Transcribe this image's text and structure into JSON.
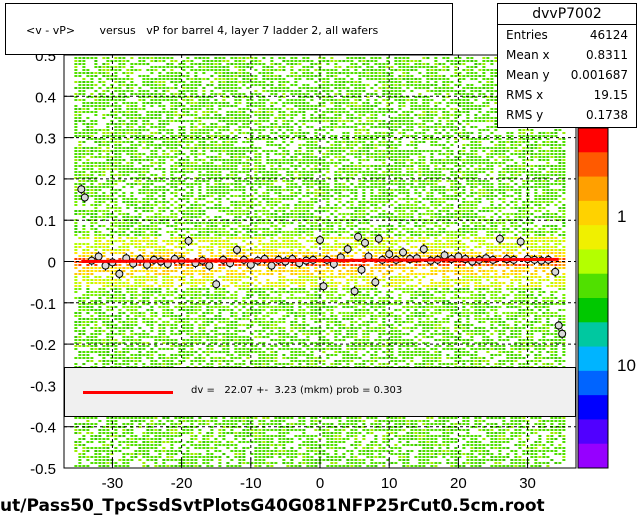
{
  "chart_data": {
    "type": "scatter",
    "title": "<v - vP>       versus   vP for barrel 4, layer 7 ladder 2, all wafers",
    "xlabel": "",
    "ylabel": "",
    "xlim": [
      -37,
      37
    ],
    "ylim": [
      -0.5,
      0.5
    ],
    "x_ticks": [
      -30,
      -20,
      -10,
      0,
      10,
      20,
      30
    ],
    "x_tick_labels": [
      "-30",
      "-20",
      "-10",
      "0",
      "10",
      "20",
      "30"
    ],
    "y_ticks": [
      -0.5,
      -0.4,
      -0.3,
      -0.2,
      -0.1,
      0,
      0.1,
      0.2,
      0.3,
      0.4
    ],
    "y_tick_labels": [
      "-0.5",
      "-0.4",
      "-0.3",
      "-0.2",
      "-0.1",
      "0",
      "0.1",
      "0.2",
      "0.3",
      "0.4"
    ],
    "y_top_partial_label": "0.5",
    "grid": true,
    "colorbar_labels": [
      "1",
      "10"
    ],
    "colorbar_partial_label": "0",
    "fit_line": {
      "x": [
        -34.5,
        34.5
      ],
      "y": [
        0.0,
        0.005
      ],
      "color": "#ff0000"
    },
    "profile_points": [
      {
        "x": -34.5,
        "y": 0.175
      },
      {
        "x": -34,
        "y": 0.155
      },
      {
        "x": -33,
        "y": 0.002
      },
      {
        "x": -32,
        "y": 0.012
      },
      {
        "x": -31,
        "y": -0.01
      },
      {
        "x": -30,
        "y": -0.002
      },
      {
        "x": -29,
        "y": -0.03
      },
      {
        "x": -28,
        "y": 0.008
      },
      {
        "x": -27,
        "y": -0.005
      },
      {
        "x": -26,
        "y": 0.006
      },
      {
        "x": -25,
        "y": -0.008
      },
      {
        "x": -24,
        "y": 0.004
      },
      {
        "x": -23,
        "y": 0.0
      },
      {
        "x": -22,
        "y": -0.006
      },
      {
        "x": -21,
        "y": 0.006
      },
      {
        "x": -20,
        "y": 0.002
      },
      {
        "x": -19,
        "y": 0.05
      },
      {
        "x": -18,
        "y": -0.004
      },
      {
        "x": -17,
        "y": 0.002
      },
      {
        "x": -16,
        "y": -0.01
      },
      {
        "x": -15,
        "y": -0.055
      },
      {
        "x": -14,
        "y": 0.004
      },
      {
        "x": -13,
        "y": -0.004
      },
      {
        "x": -12,
        "y": 0.028
      },
      {
        "x": -11,
        "y": 0.004
      },
      {
        "x": -10,
        "y": -0.008
      },
      {
        "x": -9,
        "y": 0.002
      },
      {
        "x": -8,
        "y": 0.006
      },
      {
        "x": -7,
        "y": -0.01
      },
      {
        "x": -6,
        "y": 0.004
      },
      {
        "x": -5,
        "y": 0.0
      },
      {
        "x": -4,
        "y": 0.006
      },
      {
        "x": -3,
        "y": -0.004
      },
      {
        "x": -2,
        "y": 0.002
      },
      {
        "x": -1,
        "y": 0.004
      },
      {
        "x": 0,
        "y": 0.052
      },
      {
        "x": 0.5,
        "y": -0.06
      },
      {
        "x": 1,
        "y": 0.004
      },
      {
        "x": 2,
        "y": -0.006
      },
      {
        "x": 3,
        "y": 0.01
      },
      {
        "x": 4,
        "y": 0.03
      },
      {
        "x": 5,
        "y": -0.072
      },
      {
        "x": 5.5,
        "y": 0.06
      },
      {
        "x": 6,
        "y": -0.02
      },
      {
        "x": 6.5,
        "y": 0.045
      },
      {
        "x": 7,
        "y": 0.012
      },
      {
        "x": 8,
        "y": -0.05
      },
      {
        "x": 8.5,
        "y": 0.055
      },
      {
        "x": 9,
        "y": 0.004
      },
      {
        "x": 10,
        "y": 0.018
      },
      {
        "x": 11,
        "y": 0.004
      },
      {
        "x": 12,
        "y": 0.022
      },
      {
        "x": 13,
        "y": 0.006
      },
      {
        "x": 14,
        "y": 0.008
      },
      {
        "x": 15,
        "y": 0.03
      },
      {
        "x": 16,
        "y": 0.002
      },
      {
        "x": 17,
        "y": 0.004
      },
      {
        "x": 18,
        "y": 0.015
      },
      {
        "x": 19,
        "y": 0.006
      },
      {
        "x": 20,
        "y": 0.012
      },
      {
        "x": 21,
        "y": 0.006
      },
      {
        "x": 22,
        "y": 0.0
      },
      {
        "x": 23,
        "y": 0.004
      },
      {
        "x": 24,
        "y": 0.008
      },
      {
        "x": 25,
        "y": 0.004
      },
      {
        "x": 26,
        "y": 0.055
      },
      {
        "x": 27,
        "y": 0.006
      },
      {
        "x": 28,
        "y": 0.004
      },
      {
        "x": 29,
        "y": 0.048
      },
      {
        "x": 30,
        "y": 0.006
      },
      {
        "x": 31,
        "y": 0.004
      },
      {
        "x": 32,
        "y": 0.002
      },
      {
        "x": 33,
        "y": 0.004
      },
      {
        "x": 34,
        "y": -0.025
      },
      {
        "x": 34.5,
        "y": -0.155
      },
      {
        "x": 35,
        "y": -0.175
      }
    ]
  },
  "stats": {
    "name": "dvvP7002",
    "rows": [
      {
        "key": "Entries",
        "value": "46124"
      },
      {
        "key": "Mean x",
        "value": "0.8311"
      },
      {
        "key": "Mean y",
        "value": "0.001687"
      },
      {
        "key": "RMS x",
        "value": "19.15"
      },
      {
        "key": "RMS y",
        "value": "0.1738"
      }
    ]
  },
  "fit": {
    "label": "dv =   22.07 +-  3.23 (mkm) prob = 0.303"
  },
  "footer": "ut/Pass50_TpcSsdSvtPlotsG40G081NFP25rCut0.5cm.root"
}
